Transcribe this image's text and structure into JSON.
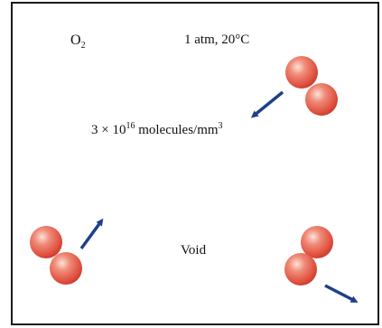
{
  "gas": {
    "symbol": "O",
    "subscript": "2"
  },
  "conditions": "1 atm, 20°C",
  "density": {
    "prefix": "3 × 10",
    "exponent": "16",
    "unit": " molecules/mm",
    "unit_exponent": "3"
  },
  "void_label": "Void",
  "colors": {
    "atom": "#e86a5c",
    "atom_highlight": "#fde2d8",
    "atom_shadow": "#c93a2e",
    "arrow": "#1f3f8a",
    "border": "#1a1a1a"
  },
  "molecule_count": 3
}
